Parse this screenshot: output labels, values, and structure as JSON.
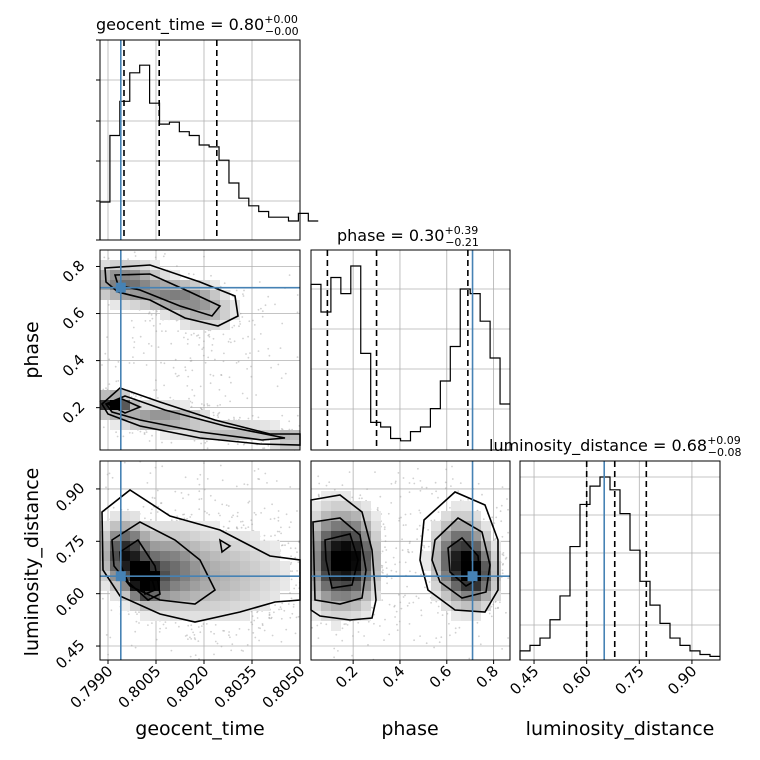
{
  "chart_data": {
    "type": "corner",
    "parameters": [
      "geocent_time",
      "phase",
      "luminosity_distance"
    ],
    "truths": {
      "geocent_time": 0.7994,
      "phase": 0.71,
      "luminosity_distance": 0.65
    },
    "titles": [
      {
        "param": "geocent_time",
        "label": "geocent_time = 0.80",
        "sup": "+0.00",
        "sub": "−0.00"
      },
      {
        "param": "phase",
        "label": "phase = 0.30",
        "sup": "+0.39",
        "sub": "−0.21"
      },
      {
        "param": "luminosity_distance",
        "label": "luminosity_distance = 0.68",
        "sup": "+0.09",
        "sub": "−0.08"
      }
    ],
    "axis_labels": {
      "x": [
        "geocent_time",
        "phase",
        "luminosity_distance"
      ],
      "y": [
        "phase",
        "luminosity_distance"
      ]
    },
    "ticks": {
      "geocent_time": [
        "0.7990",
        "0.8005",
        "0.8020",
        "0.8035",
        "0.8050"
      ],
      "phase": [
        "0.2",
        "0.4",
        "0.6",
        "0.8"
      ],
      "luminosity_distance": [
        "0.45",
        "0.60",
        "0.75",
        "0.90"
      ]
    },
    "ranges": {
      "geocent_time": [
        0.79875,
        0.805
      ],
      "phase": [
        0.02,
        0.87
      ],
      "luminosity_distance": [
        0.41,
        0.98
      ]
    },
    "quantiles": {
      "geocent_time": [
        0.7995,
        0.8006,
        0.8024
      ],
      "phase": [
        0.09,
        0.3,
        0.69
      ],
      "luminosity_distance": [
        0.6,
        0.68,
        0.77
      ]
    },
    "hist_geocent_time": {
      "edges_start": 0.79875,
      "bin_width": 0.00031,
      "values": [
        0.2,
        0.55,
        0.73,
        0.88,
        0.92,
        0.72,
        0.61,
        0.62,
        0.57,
        0.55,
        0.5,
        0.49,
        0.42,
        0.3,
        0.22,
        0.18,
        0.15,
        0.12,
        0.12,
        0.1,
        0.14,
        0.1
      ]
    },
    "hist_phase": {
      "edges_start": 0.02,
      "bin_width": 0.0425,
      "values": [
        0.72,
        0.6,
        0.75,
        0.68,
        0.8,
        0.42,
        0.12,
        0.1,
        0.05,
        0.04,
        0.08,
        0.1,
        0.18,
        0.3,
        0.45,
        0.7,
        0.68,
        0.56,
        0.4,
        0.2
      ]
    },
    "hist_luminosity_distance": {
      "edges_start": 0.41,
      "bin_width": 0.0285,
      "values": [
        0.05,
        0.08,
        0.12,
        0.22,
        0.35,
        0.62,
        0.85,
        0.95,
        1.0,
        0.93,
        0.8,
        0.6,
        0.43,
        0.3,
        0.2,
        0.12,
        0.08,
        0.05,
        0.03,
        0.02
      ]
    },
    "title": "",
    "grid": true,
    "truth_color": "#4682b4"
  }
}
